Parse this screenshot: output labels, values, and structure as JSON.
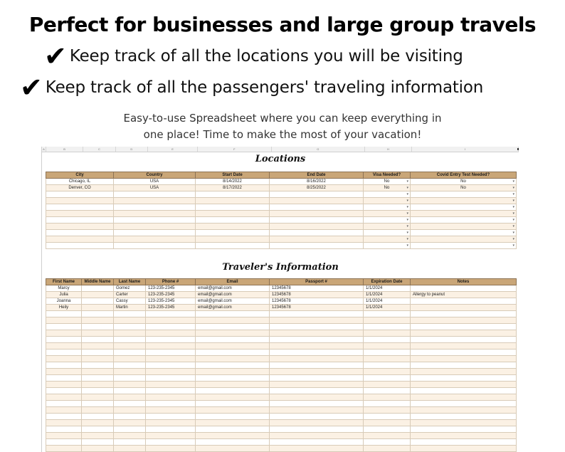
{
  "headline": "Perfect for businesses and large group travels",
  "bullets": [
    "Keep track of all the locations you will be visiting",
    "Keep track of all the passengers' traveling information"
  ],
  "check_glyph": "✔",
  "subtitle_line1": "Easy-to-use Spreadsheet where you can keep everything in",
  "subtitle_line2": "one place! Time to make the most of your vacation!",
  "column_letters": [
    "A",
    "B",
    "C",
    "D",
    "E",
    "F",
    "G",
    "H",
    "I"
  ],
  "locations": {
    "title": "Locations",
    "headers": [
      "City",
      "Country",
      "Start Date",
      "End Date",
      "Visa Needed?",
      "Covid Entry Test Needed?"
    ],
    "rows": [
      [
        "Chicago, IL",
        "USA",
        "8/14/2022",
        "8/16/2022",
        "No",
        "No"
      ],
      [
        "Denver, CO",
        "USA",
        "8/17/2022",
        "8/25/2022",
        "No",
        "No"
      ]
    ],
    "empty_rows": 9
  },
  "travelers": {
    "title": "Traveler's Information",
    "headers": [
      "First Name",
      "Middle Name",
      "Last Name",
      "Phone #",
      "Email",
      "Passport #",
      "Expiration Date",
      "Notes"
    ],
    "rows": [
      [
        "Marcy",
        "",
        "Gomez",
        "123-235-2345",
        "email@gmail.com",
        "12345678",
        "1/1/2024",
        ""
      ],
      [
        "Julia",
        "",
        "Carter",
        "123-235-2345",
        "email@gmail.com",
        "12345678",
        "1/1/2024",
        "Allergy to peanut"
      ],
      [
        "Joanna",
        "",
        "Cassy",
        "123-235-2345",
        "email@gmail.com",
        "12345678",
        "1/1/2024",
        ""
      ],
      [
        "Heily",
        "",
        "Martin",
        "123-235-2345",
        "email@gmail.com",
        "12345678",
        "1/1/2024",
        ""
      ]
    ],
    "empty_rows": 22
  },
  "colors": {
    "header_fill": "#c9a678",
    "row_stripe": "#fbf1e4"
  },
  "icons": {
    "dropdown": "dropdown-arrow-icon",
    "check": "checkmark-icon"
  }
}
